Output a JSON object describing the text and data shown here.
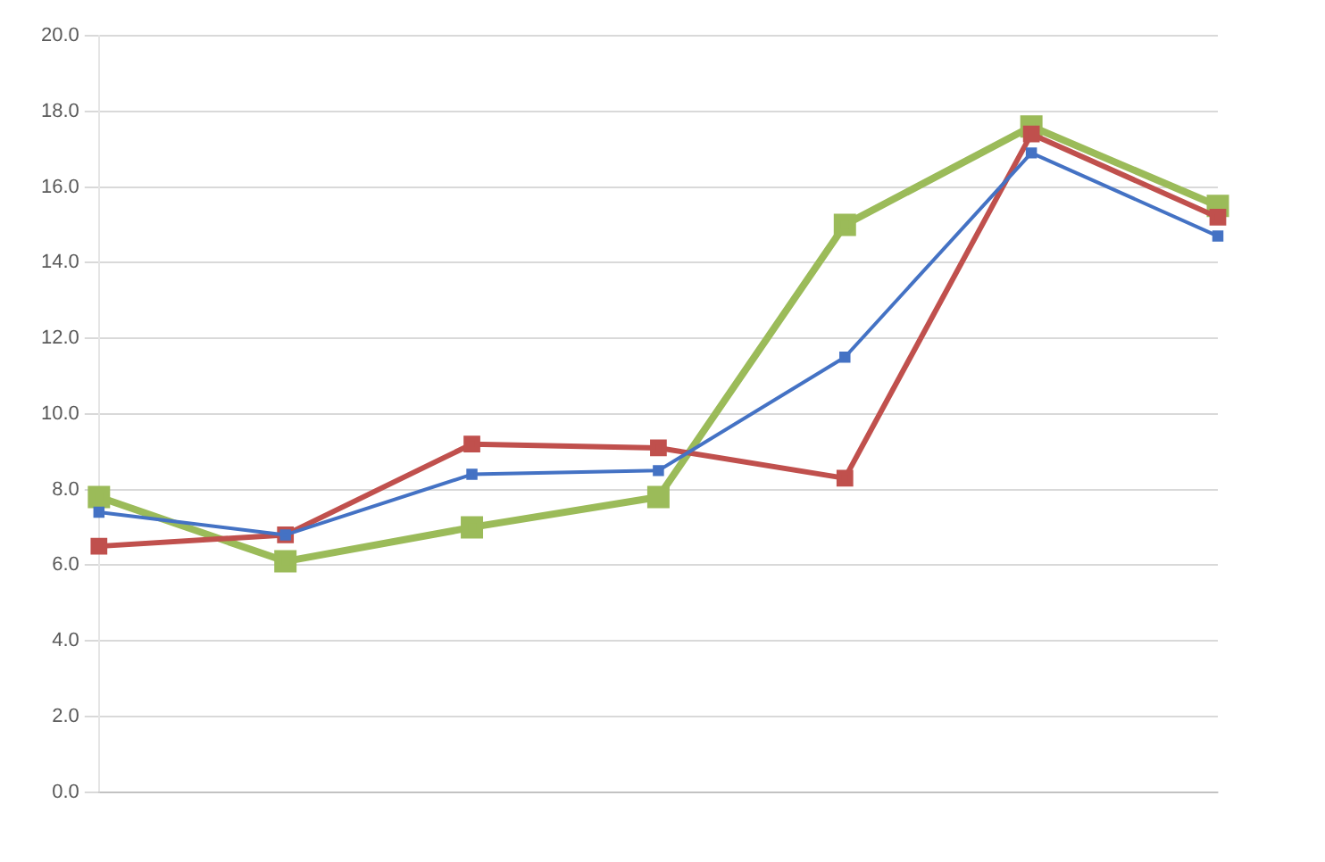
{
  "chart_data": {
    "type": "line",
    "categories": [
      null,
      null,
      null,
      null,
      null,
      null,
      null
    ],
    "series": [
      {
        "color": "#4472c4",
        "values": [
          7.4,
          6.8,
          8.4,
          8.5,
          11.5,
          16.9,
          14.7
        ]
      },
      {
        "color": "#c0504d",
        "values": [
          6.5,
          6.8,
          9.2,
          9.1,
          8.3,
          17.4,
          15.2
        ]
      },
      {
        "color": "#9bbb59",
        "values": [
          7.8,
          6.1,
          7.0,
          7.8,
          15.0,
          17.6,
          15.5
        ]
      }
    ],
    "ylim": [
      0,
      20
    ],
    "yticks": [
      {
        "value": 0,
        "label": "0.0"
      },
      {
        "value": 2,
        "label": "2.0"
      },
      {
        "value": 4,
        "label": "4.0"
      },
      {
        "value": 6,
        "label": "6.0"
      },
      {
        "value": 8,
        "label": "8.0"
      },
      {
        "value": 10,
        "label": "10.0"
      },
      {
        "value": 12,
        "label": "12.0"
      },
      {
        "value": 14,
        "label": "14.0"
      },
      {
        "value": 16,
        "label": "16.0"
      },
      {
        "value": 18,
        "label": "18.0"
      },
      {
        "value": 20,
        "label": "20.0"
      }
    ],
    "grid": "y",
    "marker": "square",
    "line_style": "solid"
  }
}
